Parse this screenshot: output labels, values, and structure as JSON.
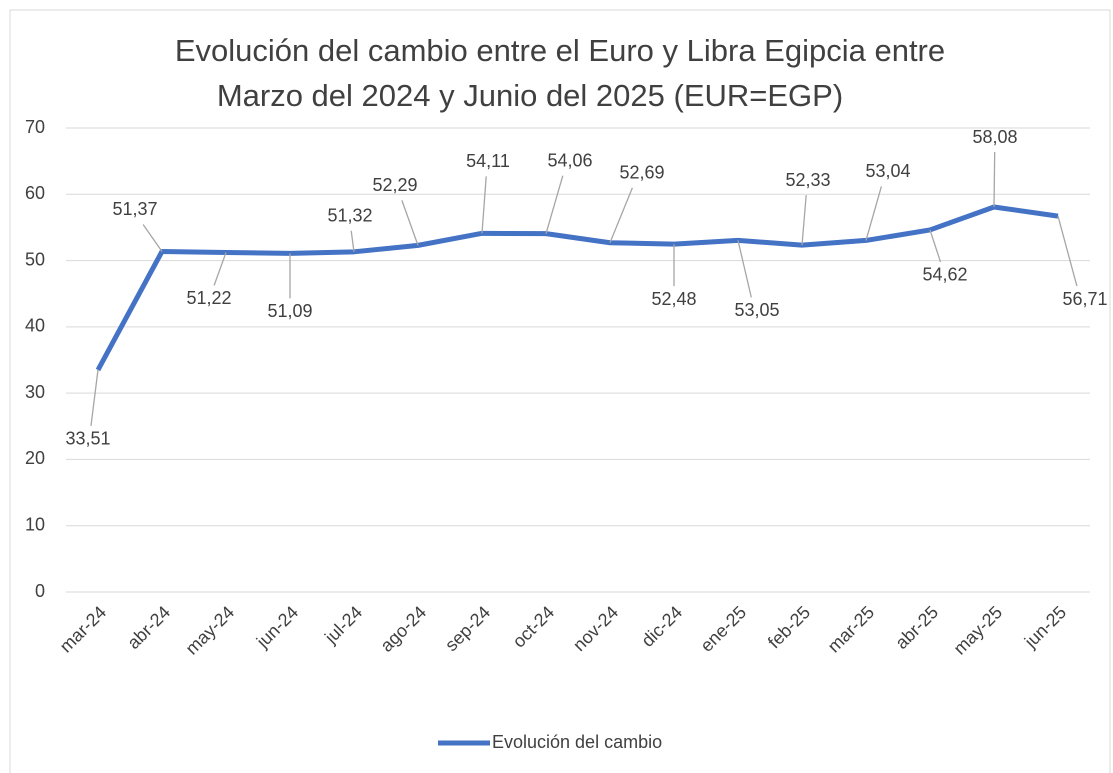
{
  "chart_data": {
    "type": "line",
    "title": [
      "Evolución del cambio entre el Euro y Libra Egipcia entre",
      "Marzo del 2024 y Junio del 2025 (EUR=EGP)"
    ],
    "categories": [
      "mar-24",
      "abr-24",
      "may-24",
      "jun-24",
      "jul-24",
      "ago-24",
      "sep-24",
      "oct-24",
      "nov-24",
      "dic-24",
      "ene-25",
      "feb-25",
      "mar-25",
      "abr-25",
      "may-25",
      "jun-25"
    ],
    "series": [
      {
        "name": "Evolución del cambio",
        "color": "#4472c4",
        "values": [
          33.51,
          51.37,
          51.22,
          51.09,
          51.32,
          52.29,
          54.11,
          54.06,
          52.69,
          52.48,
          53.05,
          52.33,
          53.04,
          54.62,
          58.08,
          56.71
        ],
        "value_labels": [
          "33,51",
          "51,37",
          "51,22",
          "51,09",
          "51,32",
          "52,29",
          "54,11",
          "54,06",
          "52,69",
          "52,48",
          "53,05",
          "52,33",
          "53,04",
          "54,62",
          "58,08",
          "56,71"
        ]
      }
    ],
    "ylim": [
      0,
      70
    ],
    "yticks": [
      0,
      10,
      20,
      30,
      40,
      50,
      60,
      70
    ],
    "grid": true,
    "legend": "bottom"
  }
}
